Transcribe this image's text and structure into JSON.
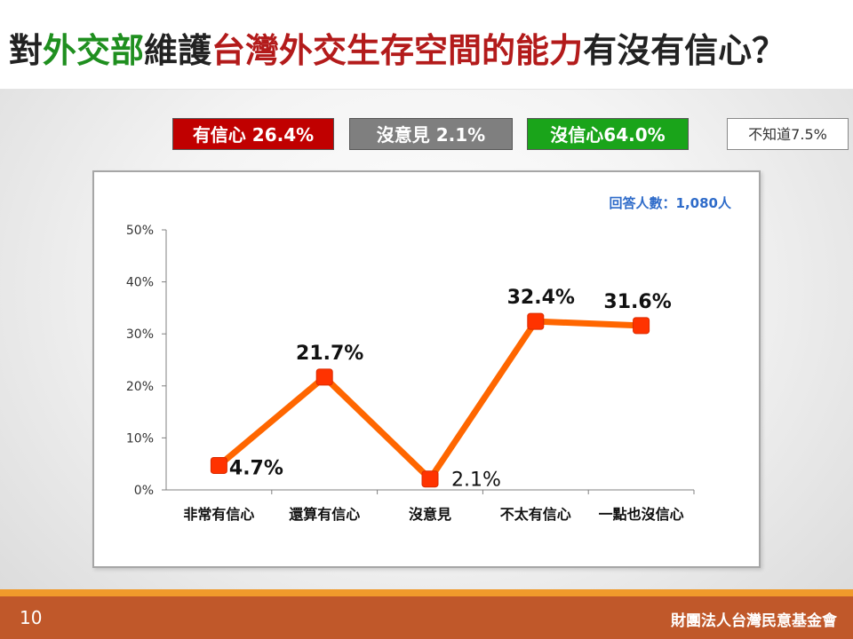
{
  "title": {
    "parts": [
      {
        "text": "對",
        "color": "dark"
      },
      {
        "text": "外交部",
        "color": "green"
      },
      {
        "text": "維護",
        "color": "dark"
      },
      {
        "text": "台灣外交生存空間的能力",
        "color": "red"
      },
      {
        "text": "有沒有信心？",
        "color": "dark"
      }
    ]
  },
  "summary": {
    "confident": "有信心 26.4%",
    "no_opinion": "沒意見 2.1%",
    "not_confident": "沒信心64.0%",
    "dont_know": "不知道7.5%"
  },
  "respondents": "回答人數：1,080人",
  "footer": {
    "page": "10",
    "org": "財團法人台灣民意基金會"
  },
  "colors": {
    "line": "#ff6600",
    "marker": "#ff3300",
    "green": "#1f8f1f",
    "red": "#b31b1b",
    "respondents": "#2e6bc9"
  },
  "chart_data": {
    "type": "line",
    "categories": [
      "非常有信心",
      "還算有信心",
      "沒意見",
      "不太有信心",
      "一點也沒信心"
    ],
    "values": [
      4.7,
      21.7,
      2.1,
      32.4,
      31.6
    ],
    "data_labels": [
      "4.7%",
      "21.7%",
      "2.1%",
      "32.4%",
      "31.6%"
    ],
    "yticks": [
      "0%",
      "10%",
      "20%",
      "30%",
      "40%",
      "50%"
    ],
    "ylim": [
      0,
      50
    ],
    "grid": false
  }
}
